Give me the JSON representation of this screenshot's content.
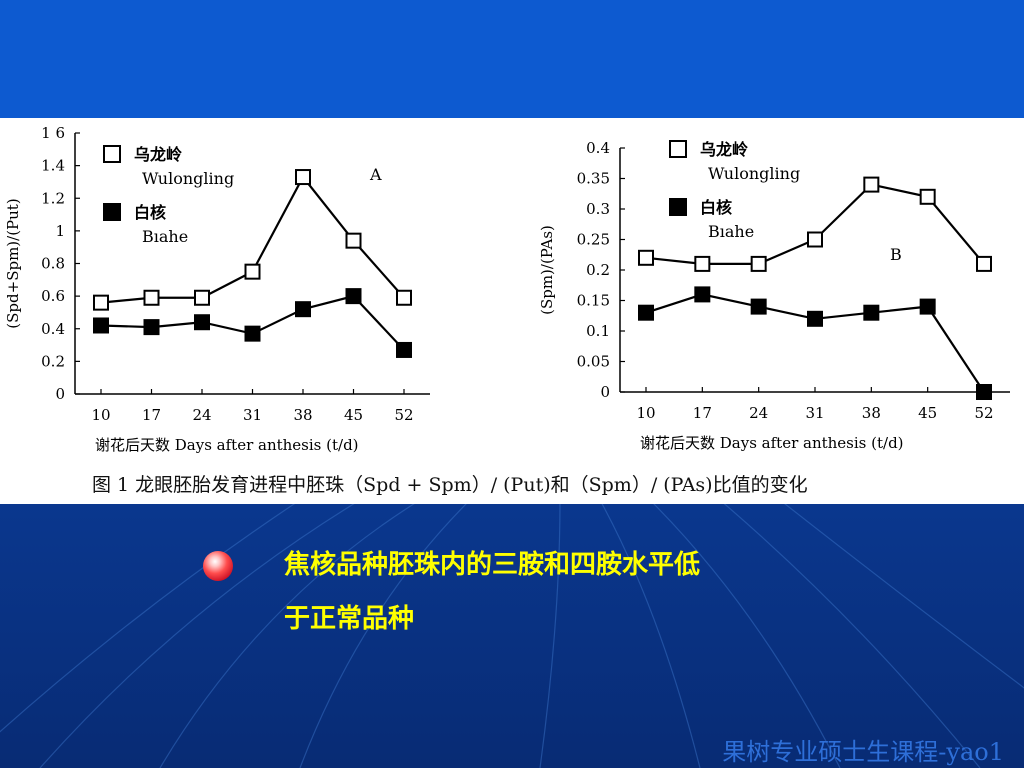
{
  "figure": {
    "caption": "图 1   龙眼胚胎发育进程中胚珠（Spd + Spm）/ (Put)和（Spm）/ (PAs)比值的变化"
  },
  "chart_data": [
    {
      "type": "line",
      "panel_label": "A",
      "ylabel": "(Spd+Spm)/(Put)",
      "xlabel": "谢花后天数  Days after anthesis  (t/d)",
      "x": [
        10,
        17,
        24,
        31,
        38,
        45,
        52
      ],
      "ylim": [
        0,
        1.6
      ],
      "yticks": [
        0,
        0.2,
        0.4,
        0.6,
        0.8,
        1,
        1.2,
        1.4,
        1.6
      ],
      "ytick_labels": [
        "0",
        "0.2",
        "0.4",
        "0.6",
        "0.8",
        "1",
        "1.2",
        "1.4",
        "1 6"
      ],
      "legend_position": "top-left",
      "series": [
        {
          "name": "乌龙岭",
          "name_en": "Wulongling",
          "marker": "open-square",
          "values": [
            0.56,
            0.59,
            0.59,
            0.75,
            1.33,
            0.94,
            0.59
          ]
        },
        {
          "name": "白核",
          "name_en": "Bıahe",
          "marker": "filled-square",
          "values": [
            0.42,
            0.41,
            0.44,
            0.37,
            0.52,
            0.6,
            0.27
          ]
        }
      ]
    },
    {
      "type": "line",
      "panel_label": "B",
      "ylabel": "(Spm)/(PAs)",
      "xlabel": "谢花后天数  Days after anthesis  (t/d)",
      "x": [
        10,
        17,
        24,
        31,
        38,
        45,
        52
      ],
      "ylim": [
        0,
        0.4
      ],
      "yticks": [
        0,
        0.05,
        0.1,
        0.15,
        0.2,
        0.25,
        0.3,
        0.35,
        0.4
      ],
      "ytick_labels": [
        "0",
        "0.05",
        "0.1",
        "0.15",
        "0.2",
        "0.25",
        "0.3",
        "0.35",
        "0.4"
      ],
      "legend_position": "top-left",
      "series": [
        {
          "name": "乌龙岭",
          "name_en": "Wulongling",
          "marker": "open-square",
          "values": [
            0.22,
            0.21,
            0.21,
            0.25,
            0.34,
            0.32,
            0.21
          ]
        },
        {
          "name": "白核",
          "name_en": "Bıahe",
          "marker": "filled-square",
          "values": [
            0.13,
            0.16,
            0.14,
            0.12,
            0.13,
            0.14,
            0.0
          ]
        }
      ]
    }
  ],
  "bullet": {
    "line1": "焦核品种胚珠内的三胺和四胺水平低",
    "line2": "于正常品种"
  },
  "footer": "果树专业硕士生课程-yao1"
}
